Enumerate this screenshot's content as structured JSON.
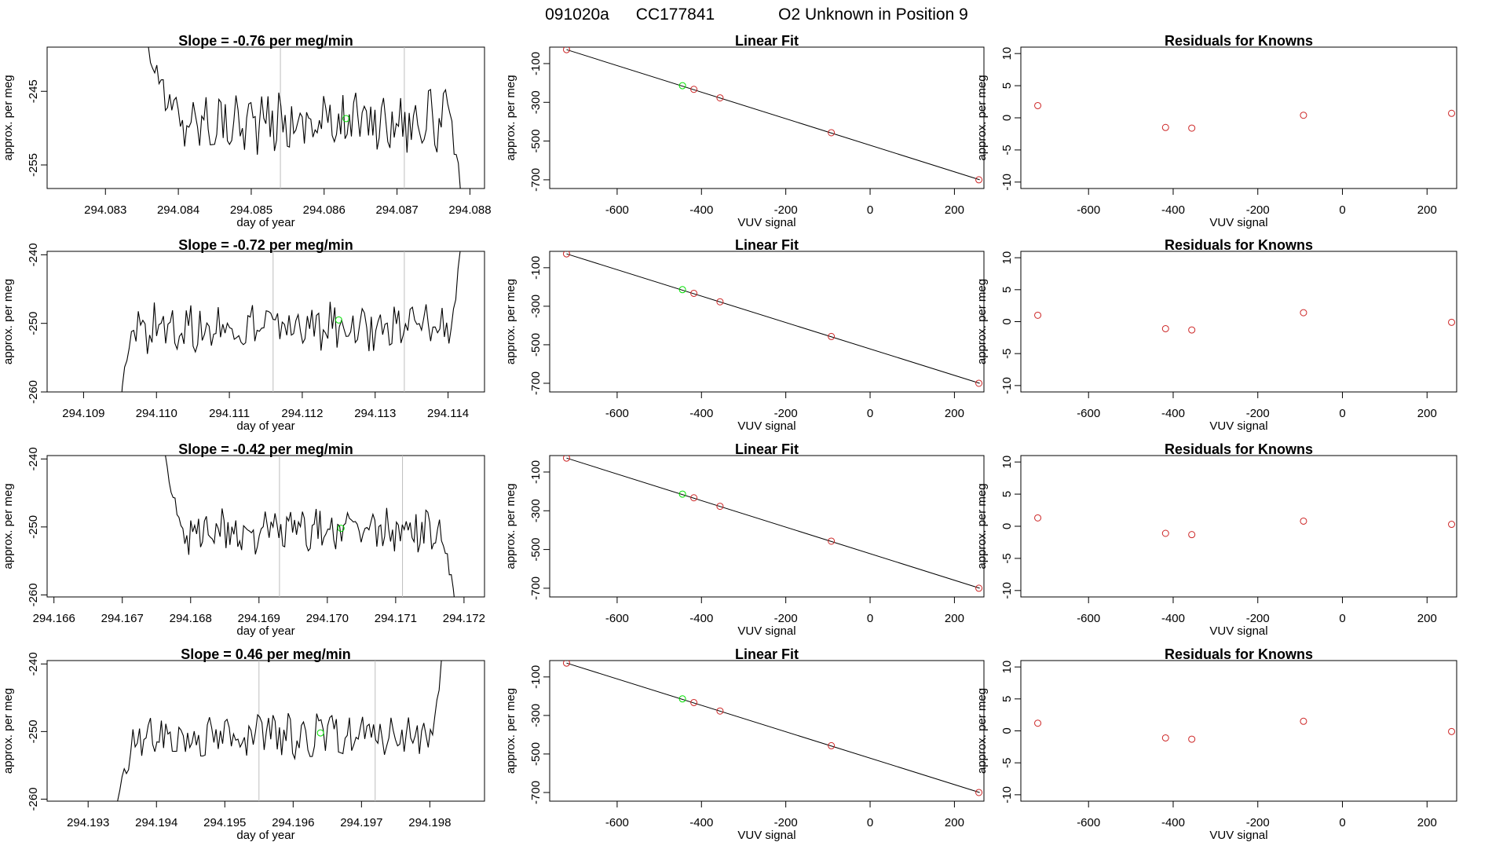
{
  "figure": {
    "title_id": "091020a",
    "title_cc": "CC177841",
    "title_desc": "O2 Unknown in Position  9"
  },
  "colors": {
    "line": "#000000",
    "known": "#cd2626",
    "unknown": "#00e000",
    "vline": "#bebebe"
  },
  "chart_data": [
    {
      "type": "line",
      "title": "Slope =  -0.76  per meg/min",
      "xlabel": "day of year",
      "ylabel": "approx. per meg",
      "xlim": [
        294.0822,
        294.0882
      ],
      "ylim": [
        -258.2,
        -239.0
      ],
      "xticks": [
        "294.083",
        "294.084",
        "294.085",
        "294.086",
        "294.087",
        "294.088"
      ],
      "yticks": [
        "-245",
        "-255"
      ],
      "x_start": 294.0835,
      "x_end": 294.0879,
      "plateau_x": [
        294.084,
        294.0877
      ],
      "plateau_mean": -249.0,
      "plateau_sd": 2.1,
      "entry_level": -234,
      "exit_level": -262,
      "vlines": [
        294.0854,
        294.0871
      ],
      "unknown_point": {
        "x": 294.0863,
        "y": -248.7
      }
    },
    {
      "type": "scatter",
      "title": "Linear Fit",
      "xlabel": "VUV signal",
      "ylabel": "approx. per meg",
      "xlim": [
        -760,
        270
      ],
      "ylim": [
        -745,
        -15
      ],
      "xticks": [
        -600,
        -400,
        -200,
        0,
        200
      ],
      "yticks": [
        -100,
        -300,
        -500,
        -700
      ],
      "fit": {
        "x": [
          -720,
          260
        ],
        "y": [
          -28,
          -700
        ]
      },
      "knowns": [
        {
          "x": -720,
          "y": -28
        },
        {
          "x": -418,
          "y": -233
        },
        {
          "x": -356,
          "y": -277
        },
        {
          "x": -92,
          "y": -457
        },
        {
          "x": 258,
          "y": -700
        }
      ],
      "unknown_point": {
        "x": -445,
        "y": -214
      }
    },
    {
      "type": "scatter",
      "title": "Residuals for Knowns",
      "xlabel": "VUV signal",
      "ylabel": "approx. per meg",
      "xlim": [
        -760,
        270
      ],
      "ylim": [
        -11,
        11
      ],
      "xticks": [
        -600,
        -400,
        -200,
        0,
        200
      ],
      "yticks": [
        10,
        5,
        0,
        -5,
        -10
      ],
      "points": [
        {
          "x": -720,
          "y": 1.9
        },
        {
          "x": -418,
          "y": -1.5
        },
        {
          "x": -356,
          "y": -1.6
        },
        {
          "x": -92,
          "y": 0.4
        },
        {
          "x": 258,
          "y": 0.7
        }
      ]
    },
    {
      "type": "line",
      "title": "Slope =  -0.72  per meg/min",
      "xlabel": "day of year",
      "ylabel": "approx. per meg",
      "xlim": [
        294.1085,
        294.1145
      ],
      "ylim": [
        -260,
        -239.5
      ],
      "xticks": [
        "294.109",
        "294.110",
        "294.111",
        "294.112",
        "294.113",
        "294.114"
      ],
      "yticks": [
        "-240",
        "-250",
        "-260"
      ],
      "x_start": 294.1095,
      "x_end": 294.1142,
      "plateau_x": [
        294.1097,
        294.114
      ],
      "plateau_mean": -250.6,
      "plateau_sd": 1.8,
      "entry_level": -264,
      "exit_level": -236,
      "vlines": [
        294.1116,
        294.1134
      ],
      "unknown_point": {
        "x": 294.1125,
        "y": -249.5
      }
    },
    {
      "type": "scatter",
      "title": "Linear Fit",
      "xlabel": "VUV signal",
      "ylabel": "approx. per meg",
      "xlim": [
        -760,
        270
      ],
      "ylim": [
        -745,
        -15
      ],
      "xticks": [
        -600,
        -400,
        -200,
        0,
        200
      ],
      "yticks": [
        -100,
        -300,
        -500,
        -700
      ],
      "fit": {
        "x": [
          -720,
          260
        ],
        "y": [
          -28,
          -700
        ]
      },
      "knowns": [
        {
          "x": -720,
          "y": -28
        },
        {
          "x": -418,
          "y": -233
        },
        {
          "x": -356,
          "y": -277
        },
        {
          "x": -92,
          "y": -457
        },
        {
          "x": 258,
          "y": -700
        }
      ],
      "unknown_point": {
        "x": -445,
        "y": -214
      }
    },
    {
      "type": "scatter",
      "title": "Residuals for Knowns",
      "xlabel": "VUV signal",
      "ylabel": "approx. per meg",
      "xlim": [
        -760,
        270
      ],
      "ylim": [
        -11,
        11
      ],
      "xticks": [
        -600,
        -400,
        -200,
        0,
        200
      ],
      "yticks": [
        10,
        5,
        0,
        -5,
        -10
      ],
      "points": [
        {
          "x": -720,
          "y": 1.0
        },
        {
          "x": -418,
          "y": -1.1
        },
        {
          "x": -356,
          "y": -1.3
        },
        {
          "x": -92,
          "y": 1.4
        },
        {
          "x": 258,
          "y": -0.1
        }
      ]
    },
    {
      "type": "line",
      "title": "Slope =  -0.42  per meg/min",
      "xlabel": "day of year",
      "ylabel": "approx. per meg",
      "xlim": [
        294.1659,
        294.1723
      ],
      "ylim": [
        -260.3,
        -239.5
      ],
      "xticks": [
        "294.166",
        "294.167",
        "294.168",
        "294.169",
        "294.170",
        "294.171",
        "294.172"
      ],
      "yticks": [
        "-240",
        "-250",
        "-260"
      ],
      "x_start": 294.1676,
      "x_end": 294.1719,
      "plateau_x": [
        294.1679,
        294.1716
      ],
      "plateau_mean": -250.6,
      "plateau_sd": 1.7,
      "entry_level": -236,
      "exit_level": -264,
      "vlines": [
        294.1693,
        294.1711
      ],
      "unknown_point": {
        "x": 294.1702,
        "y": -250.2
      }
    },
    {
      "type": "scatter",
      "title": "Linear Fit",
      "xlabel": "VUV signal",
      "ylabel": "approx. per meg",
      "xlim": [
        -760,
        270
      ],
      "ylim": [
        -745,
        -15
      ],
      "xticks": [
        -600,
        -400,
        -200,
        0,
        200
      ],
      "yticks": [
        -100,
        -300,
        -500,
        -700
      ],
      "fit": {
        "x": [
          -720,
          260
        ],
        "y": [
          -28,
          -700
        ]
      },
      "knowns": [
        {
          "x": -720,
          "y": -28
        },
        {
          "x": -418,
          "y": -233
        },
        {
          "x": -356,
          "y": -277
        },
        {
          "x": -92,
          "y": -457
        },
        {
          "x": 258,
          "y": -700
        }
      ],
      "unknown_point": {
        "x": -445,
        "y": -214
      }
    },
    {
      "type": "scatter",
      "title": "Residuals for Knowns",
      "xlabel": "VUV signal",
      "ylabel": "approx. per meg",
      "xlim": [
        -760,
        270
      ],
      "ylim": [
        -11,
        11
      ],
      "xticks": [
        -600,
        -400,
        -200,
        0,
        200
      ],
      "yticks": [
        10,
        5,
        0,
        -5,
        -10
      ],
      "points": [
        {
          "x": -720,
          "y": 1.3
        },
        {
          "x": -418,
          "y": -1.1
        },
        {
          "x": -356,
          "y": -1.3
        },
        {
          "x": -92,
          "y": 0.8
        },
        {
          "x": 258,
          "y": 0.3
        }
      ]
    },
    {
      "type": "line",
      "title": "Slope =  0.46  per meg/min",
      "xlabel": "day of year",
      "ylabel": "approx. per meg",
      "xlim": [
        294.1924,
        294.1988
      ],
      "ylim": [
        -260.3,
        -239.5
      ],
      "xticks": [
        "294.193",
        "294.194",
        "294.195",
        "294.196",
        "294.197",
        "294.198"
      ],
      "yticks": [
        "-240",
        "-250",
        "-260"
      ],
      "x_start": 294.1934,
      "x_end": 294.1982,
      "plateau_x": [
        294.1937,
        294.198
      ],
      "plateau_mean": -250.7,
      "plateau_sd": 1.6,
      "entry_level": -264,
      "exit_level": -236,
      "vlines": [
        294.1955,
        294.1972
      ],
      "unknown_point": {
        "x": 294.1964,
        "y": -250.2
      }
    },
    {
      "type": "scatter",
      "title": "Linear Fit",
      "xlabel": "VUV signal",
      "ylabel": "approx. per meg",
      "xlim": [
        -760,
        270
      ],
      "ylim": [
        -745,
        -15
      ],
      "xticks": [
        -600,
        -400,
        -200,
        0,
        200
      ],
      "yticks": [
        -100,
        -300,
        -500,
        -700
      ],
      "fit": {
        "x": [
          -720,
          260
        ],
        "y": [
          -28,
          -700
        ]
      },
      "knowns": [
        {
          "x": -720,
          "y": -28
        },
        {
          "x": -418,
          "y": -233
        },
        {
          "x": -356,
          "y": -277
        },
        {
          "x": -92,
          "y": -457
        },
        {
          "x": 258,
          "y": -700
        }
      ],
      "unknown_point": {
        "x": -445,
        "y": -214
      }
    },
    {
      "type": "scatter",
      "title": "Residuals for Knowns",
      "xlabel": "VUV signal",
      "ylabel": "approx. per meg",
      "xlim": [
        -760,
        270
      ],
      "ylim": [
        -11,
        11
      ],
      "xticks": [
        -600,
        -400,
        -200,
        0,
        200
      ],
      "yticks": [
        10,
        5,
        0,
        -5,
        -10
      ],
      "points": [
        {
          "x": -720,
          "y": 1.2
        },
        {
          "x": -418,
          "y": -1.1
        },
        {
          "x": -356,
          "y": -1.3
        },
        {
          "x": -92,
          "y": 1.5
        },
        {
          "x": 258,
          "y": -0.1
        }
      ]
    }
  ]
}
